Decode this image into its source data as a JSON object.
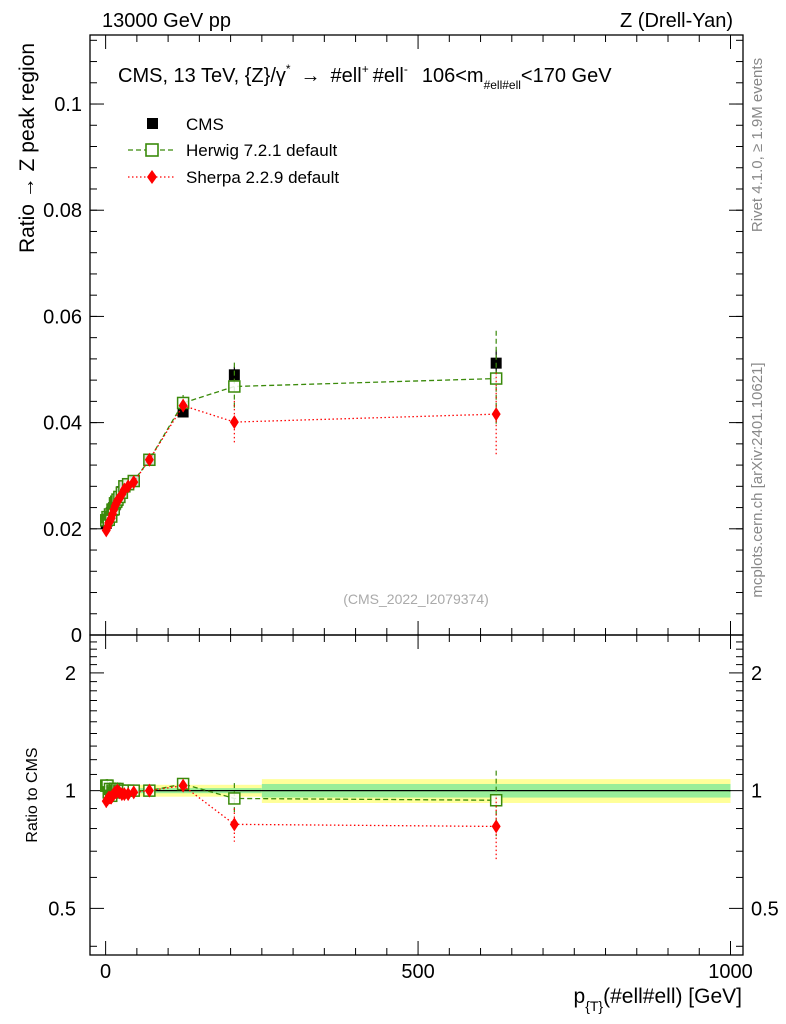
{
  "header": {
    "left": "13000 GeV pp",
    "right": "Z (Drell-Yan)"
  },
  "plot_title": {
    "main": "CMS, 13 TeV, {Z}/γ",
    "star": "*",
    "arrow": "→",
    "l1": "#ell",
    "sup_plus": "+",
    "l2": "#ell",
    "sup_minus": "-",
    "cut": "106<m",
    "cut_sub": "#ell#ell",
    "cut_tail": "<170 GeV"
  },
  "side_labels": {
    "rivet": "Rivet 4.1.0, ≥ 1.9M events",
    "mcplots": "mcplots.cern.ch [arXiv:2401.10621]"
  },
  "watermark": "(CMS_2022_I2079374)",
  "legend": [
    {
      "label": "CMS",
      "color": "#000000"
    },
    {
      "label": "Herwig 7.2.1 default",
      "color": "#3a8a0a"
    },
    {
      "label": "Sherpa 2.2.9 default",
      "color": "#ff0000"
    }
  ],
  "colors": {
    "cms": "#000000",
    "herwig": "#3a8a0a",
    "sherpa": "#ff0000",
    "band_inner": "#99ee99",
    "band_outer": "#ffff99"
  },
  "chart_data": [
    {
      "type": "scatter",
      "title": "CMS, 13 TeV, {Z}/γ* → #ell+ #ell-, 106<m(#ell#ell)<170 GeV",
      "ylabel": "Ratio → Z peak region",
      "xlabel": "p_{T}(#ell#ell) [GeV]",
      "xlim": [
        -25,
        1020
      ],
      "ylim": [
        0,
        0.113
      ],
      "yticks": [
        0,
        0.02,
        0.04,
        0.06,
        0.08,
        0.1
      ],
      "ytick_labels": [
        "0",
        "0.02",
        "0.04",
        "0.06",
        "0.08",
        "0.1"
      ],
      "series": [
        {
          "name": "CMS",
          "x": [
            1,
            3,
            5,
            7,
            9,
            11,
            13,
            15,
            17,
            19,
            22,
            26,
            30,
            36,
            45,
            70,
            124,
            206,
            625
          ],
          "values": [
            0.021,
            0.0215,
            0.022,
            0.0225,
            0.023,
            0.0235,
            0.024,
            0.0245,
            0.025,
            0.0253,
            0.026,
            0.027,
            0.028,
            0.0285,
            0.029,
            0.033,
            0.042,
            0.049,
            0.0512
          ],
          "errors": [
            0.0005,
            0.0005,
            0.0005,
            0.0005,
            0.0005,
            0.0005,
            0.0005,
            0.0005,
            0.0005,
            0.0005,
            0.0005,
            0.0005,
            0.0006,
            0.0006,
            0.0006,
            0.0007,
            0.0009,
            0.0015,
            0.0025
          ]
        },
        {
          "name": "Herwig 7.2.1 default",
          "x": [
            1,
            3,
            5,
            7,
            9,
            11,
            13,
            15,
            17,
            19,
            22,
            26,
            30,
            36,
            45,
            70,
            124,
            206,
            625
          ],
          "values": [
            0.0216,
            0.0222,
            0.0217,
            0.0227,
            0.0223,
            0.0236,
            0.0237,
            0.0248,
            0.0251,
            0.0255,
            0.026,
            0.0268,
            0.028,
            0.0284,
            0.029,
            0.033,
            0.0437,
            0.0468,
            0.0483
          ],
          "errors": [
            0.001,
            0.001,
            0.001,
            0.001,
            0.001,
            0.001,
            0.001,
            0.001,
            0.001,
            0.001,
            0.001,
            0.001,
            0.001,
            0.001,
            0.001,
            0.0008,
            0.0015,
            0.0045,
            0.009
          ]
        },
        {
          "name": "Sherpa 2.2.9 default",
          "x": [
            1,
            3,
            5,
            7,
            9,
            11,
            13,
            15,
            17,
            19,
            22,
            26,
            30,
            36,
            45,
            70,
            124,
            206,
            625
          ],
          "values": [
            0.0197,
            0.0203,
            0.0211,
            0.0215,
            0.022,
            0.0228,
            0.0236,
            0.0243,
            0.0248,
            0.0253,
            0.0257,
            0.0265,
            0.0274,
            0.028,
            0.0288,
            0.033,
            0.0432,
            0.0401,
            0.0416
          ],
          "errors": [
            0.0008,
            0.0008,
            0.0008,
            0.0008,
            0.0008,
            0.0008,
            0.0008,
            0.0008,
            0.0008,
            0.0008,
            0.0008,
            0.0008,
            0.0008,
            0.0008,
            0.0008,
            0.0007,
            0.0012,
            0.004,
            0.0078
          ]
        }
      ]
    },
    {
      "type": "scatter",
      "title": "",
      "ylabel": "Ratio to CMS",
      "xlabel": "p_{T}(#ell#ell) [GeV]",
      "xlim": [
        -25,
        1020
      ],
      "ylim": [
        0.38,
        2.5
      ],
      "yscale": "log",
      "yticks": [
        0.5,
        1,
        2
      ],
      "ytick_labels": [
        "0.5",
        "1",
        "2"
      ],
      "xticks": [
        0,
        500,
        1000
      ],
      "xtick_labels": [
        "0",
        "500",
        "1000"
      ],
      "band": {
        "x_edges": [
          0,
          250,
          1000
        ],
        "inner": [
          [
            0.985,
            1.015
          ],
          [
            0.96,
            1.04
          ]
        ],
        "outer": [
          [
            0.965,
            1.035
          ],
          [
            0.93,
            1.07
          ]
        ]
      },
      "series": [
        {
          "name": "Herwig 7.2.1 default",
          "x": [
            1,
            3,
            5,
            7,
            9,
            11,
            13,
            15,
            17,
            19,
            22,
            26,
            30,
            36,
            45,
            70,
            124,
            206,
            625
          ],
          "values": [
            1.03,
            1.03,
            0.99,
            1.01,
            0.97,
            1.0,
            0.99,
            1.01,
            1.0,
            1.01,
            1.0,
            0.99,
            1.0,
            1.0,
            1.0,
            1.0,
            1.04,
            0.955,
            0.945
          ],
          "errors": [
            0.04,
            0.04,
            0.04,
            0.04,
            0.04,
            0.04,
            0.04,
            0.04,
            0.04,
            0.04,
            0.04,
            0.04,
            0.03,
            0.03,
            0.03,
            0.025,
            0.035,
            0.09,
            0.18
          ]
        },
        {
          "name": "Sherpa 2.2.9 default",
          "x": [
            1,
            3,
            5,
            7,
            9,
            11,
            13,
            15,
            17,
            19,
            22,
            26,
            30,
            36,
            45,
            70,
            124,
            206,
            625
          ],
          "values": [
            0.94,
            0.95,
            0.96,
            0.96,
            0.96,
            0.97,
            0.98,
            0.99,
            0.99,
            1.0,
            0.99,
            0.98,
            0.98,
            0.98,
            0.99,
            1.0,
            1.03,
            0.82,
            0.81
          ],
          "errors": [
            0.035,
            0.035,
            0.035,
            0.035,
            0.035,
            0.035,
            0.035,
            0.035,
            0.035,
            0.035,
            0.035,
            0.035,
            0.03,
            0.03,
            0.03,
            0.025,
            0.03,
            0.08,
            0.15
          ]
        }
      ]
    }
  ]
}
